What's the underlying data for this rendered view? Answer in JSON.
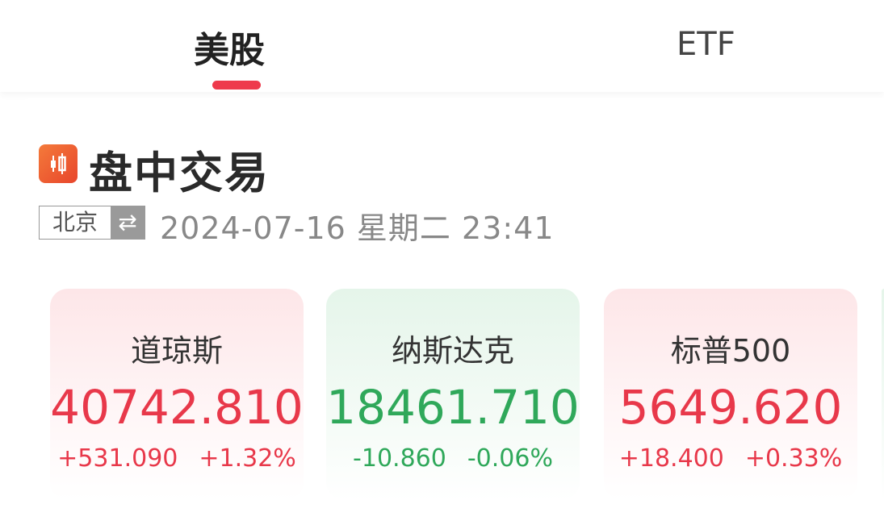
{
  "tabs": [
    {
      "label": "美股",
      "active": true
    },
    {
      "label": "ETF",
      "active": false
    }
  ],
  "colors": {
    "up": "#e8384a",
    "down": "#2fa85a",
    "accent": "#ee3a4c"
  },
  "section": {
    "icon": "candlestick-icon",
    "title": "盘中交易",
    "timezone": "北京",
    "swap_icon": "⇄",
    "datetime": "2024-07-16 星期二  23:41"
  },
  "indices": [
    {
      "name": "道琼斯",
      "price": "40742.810",
      "change": "+531.090",
      "percent": "+1.32%",
      "direction": "up"
    },
    {
      "name": "纳斯达克",
      "price": "18461.710",
      "change": "-10.860",
      "percent": "-0.06%",
      "direction": "down"
    },
    {
      "name": "标普500",
      "price": "5649.620",
      "change": "+18.400",
      "percent": "+0.33%",
      "direction": "up"
    }
  ]
}
